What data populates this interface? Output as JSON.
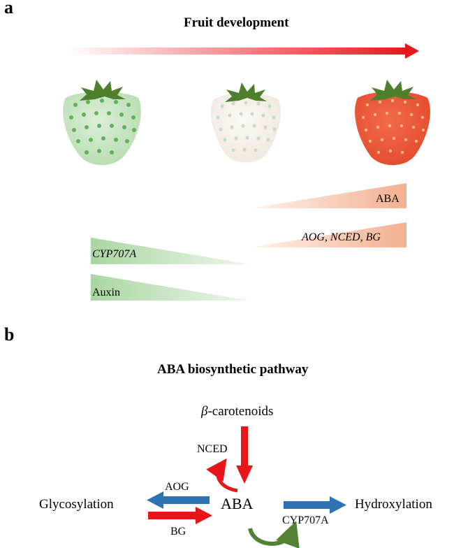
{
  "panel_a": {
    "label": "a",
    "title": "Fruit development",
    "stages": [
      {
        "name": "green-strawberry",
        "body_color": "#c7e5c1",
        "seed_color": "#4fa84a"
      },
      {
        "name": "white-strawberry",
        "body_color": "#f7f1ec",
        "seed_color": "#c6dcc3"
      },
      {
        "name": "red-strawberry",
        "body_color": "#ec5a3d",
        "seed_color": "#f1be6e"
      }
    ],
    "increasing": {
      "aba": "ABA",
      "genes": [
        "AOG",
        "NCED",
        "BG"
      ],
      "separator": ", ",
      "color": "#f3b08f"
    },
    "decreasing": {
      "cyp": "CYP707A",
      "auxin": "Auxin",
      "color": "#aad6a2"
    },
    "arrow_color": "#e8161b"
  },
  "panel_b": {
    "label": "b",
    "title": "ABA biosynthetic pathway",
    "beta_symbol": "β",
    "beta_rest": "-carotenoids",
    "nced": "NCED",
    "aba": "ABA",
    "aog": "AOG",
    "bg": "BG",
    "glycosylation": "Glycosylation",
    "hydroxylation": "Hydroxylation",
    "cyp707a": "CYP707A",
    "colors": {
      "red": "#e8161b",
      "blue": "#2e74b5",
      "green": "#548235"
    }
  }
}
